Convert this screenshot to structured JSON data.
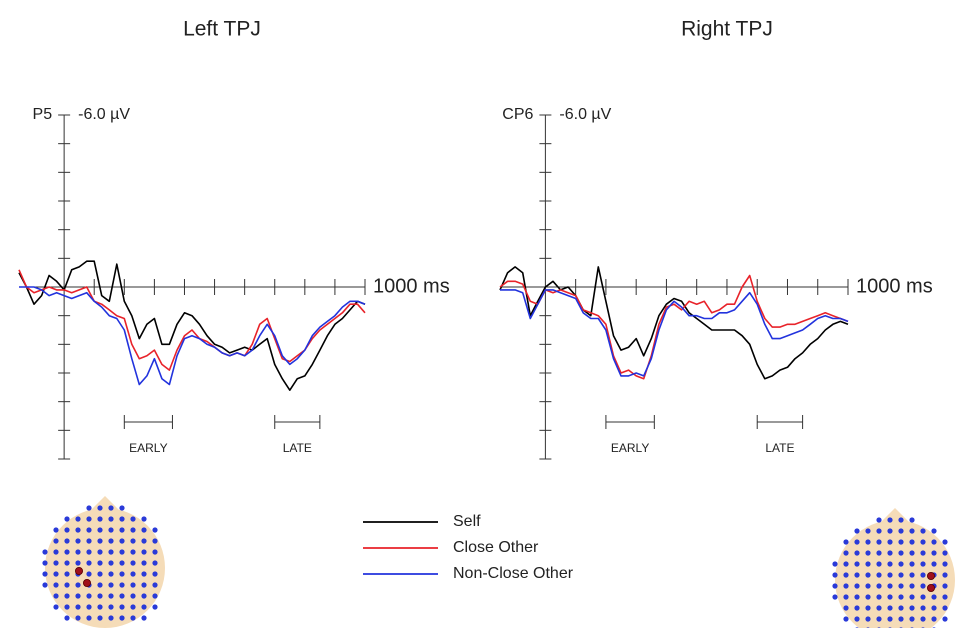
{
  "chart_data": [
    {
      "type": "line",
      "title": "Left TPJ",
      "channel": "P5",
      "x": [
        -150,
        -125,
        -100,
        -75,
        -50,
        -25,
        0,
        25,
        50,
        75,
        100,
        125,
        150,
        175,
        200,
        225,
        250,
        275,
        300,
        325,
        350,
        375,
        400,
        425,
        450,
        475,
        500,
        525,
        550,
        575,
        600,
        625,
        650,
        675,
        700,
        725,
        750,
        775,
        800,
        825,
        850,
        875,
        900,
        925,
        950,
        975,
        1000
      ],
      "xlim": [
        -150,
        1000
      ],
      "ylim": [
        -6,
        6
      ],
      "y_inverted": true,
      "xticks": [
        {
          "value": 1000,
          "label": "1000 ms"
        }
      ],
      "xminor_ticks": [
        100,
        200,
        300,
        400,
        500,
        600,
        700,
        800,
        900
      ],
      "yticks": [
        {
          "value": -6,
          "label": "-6.0 µV"
        }
      ],
      "yminor_ticks": [
        -5,
        -4,
        -3,
        -2,
        -1,
        0,
        1,
        2,
        3,
        4,
        5,
        6
      ],
      "windows": [
        {
          "label": "EARLY",
          "start": 200,
          "end": 360
        },
        {
          "label": "LATE",
          "start": 700,
          "end": 850
        }
      ],
      "legend": true,
      "series": [
        {
          "name": "Self",
          "color": "#000000",
          "values": [
            -0.5,
            0,
            0.6,
            0.3,
            -0.4,
            -0.2,
            0.1,
            -0.6,
            -0.7,
            -0.9,
            -0.9,
            0.3,
            0.5,
            -0.8,
            0.5,
            1.0,
            1.8,
            1.3,
            1.1,
            2.0,
            2.0,
            1.3,
            0.9,
            1.0,
            1.3,
            1.7,
            2.0,
            2.1,
            2.3,
            2.2,
            2.1,
            2.2,
            2.0,
            1.8,
            2.7,
            3.2,
            3.6,
            3.2,
            3.1,
            2.7,
            2.2,
            1.7,
            1.3,
            1.1,
            0.8,
            0.5,
            0.6
          ]
        },
        {
          "name": "Close Other",
          "color": "#e8232a",
          "values": [
            -0.6,
            0,
            0.2,
            0.1,
            0,
            0.1,
            0.1,
            0.2,
            0.1,
            0,
            0.5,
            0.6,
            0.8,
            1.0,
            1.1,
            2.0,
            2.5,
            2.4,
            2.2,
            2.7,
            2.9,
            2.2,
            1.7,
            1.5,
            1.8,
            1.9,
            2.1,
            2.3,
            2.4,
            2.3,
            2.4,
            2.0,
            1.3,
            1.1,
            1.8,
            2.5,
            2.6,
            2.4,
            2.2,
            1.8,
            1.5,
            1.3,
            1.1,
            0.9,
            0.6,
            0.6,
            0.9
          ]
        },
        {
          "name": "Non-Close Other",
          "color": "#2233dd",
          "values": [
            0,
            0,
            0,
            0.1,
            0.3,
            0.2,
            0.3,
            0.4,
            0.3,
            0.2,
            0.5,
            0.7,
            1.0,
            1.1,
            1.5,
            2.5,
            3.4,
            3.1,
            2.5,
            3.2,
            3.4,
            2.4,
            1.8,
            1.7,
            1.8,
            2.0,
            2.1,
            2.3,
            2.4,
            2.3,
            2.4,
            2.2,
            1.7,
            1.3,
            1.7,
            2.4,
            2.7,
            2.5,
            2.2,
            1.7,
            1.4,
            1.2,
            1.0,
            0.7,
            0.5,
            0.5,
            0.6
          ]
        }
      ]
    },
    {
      "type": "line",
      "title": "Right TPJ",
      "channel": "CP6",
      "x": [
        -150,
        -125,
        -100,
        -75,
        -50,
        -25,
        0,
        25,
        50,
        75,
        100,
        125,
        150,
        175,
        200,
        225,
        250,
        275,
        300,
        325,
        350,
        375,
        400,
        425,
        450,
        475,
        500,
        525,
        550,
        575,
        600,
        625,
        650,
        675,
        700,
        725,
        750,
        775,
        800,
        825,
        850,
        875,
        900,
        925,
        950,
        975,
        1000
      ],
      "xlim": [
        -150,
        1000
      ],
      "ylim": [
        -6,
        6
      ],
      "y_inverted": true,
      "xticks": [
        {
          "value": 1000,
          "label": "1000 ms"
        }
      ],
      "xminor_ticks": [
        100,
        200,
        300,
        400,
        500,
        600,
        700,
        800,
        900
      ],
      "yticks": [
        {
          "value": -6,
          "label": "-6.0 µV"
        }
      ],
      "yminor_ticks": [
        -5,
        -4,
        -3,
        -2,
        -1,
        0,
        1,
        2,
        3,
        4,
        5,
        6
      ],
      "windows": [
        {
          "label": "EARLY",
          "start": 200,
          "end": 360
        },
        {
          "label": "LATE",
          "start": 700,
          "end": 850
        }
      ],
      "series": [
        {
          "color": "#000000",
          "values": [
            0.1,
            -0.5,
            -0.7,
            -0.5,
            1.0,
            0.5,
            0,
            -0.2,
            0.1,
            0,
            0.3,
            0.8,
            1.0,
            -0.7,
            0.5,
            1.7,
            2.2,
            2.1,
            1.8,
            2.4,
            1.8,
            1.0,
            0.6,
            0.4,
            0.5,
            0.9,
            1.1,
            1.3,
            1.5,
            1.5,
            1.5,
            1.5,
            1.7,
            2.0,
            2.7,
            3.2,
            3.1,
            2.9,
            2.8,
            2.5,
            2.3,
            2.0,
            1.8,
            1.5,
            1.3,
            1.2,
            1.3
          ]
        },
        {
          "color": "#e8232a",
          "values": [
            0,
            -0.2,
            -0.2,
            -0.1,
            0.5,
            0.6,
            0.1,
            0.2,
            0.1,
            0.2,
            0.3,
            0.8,
            0.9,
            1.0,
            1.3,
            2.4,
            3.0,
            2.9,
            3.1,
            3.2,
            2.4,
            1.3,
            0.7,
            0.6,
            0.8,
            0.5,
            0.6,
            0.5,
            0.9,
            0.8,
            0.6,
            0.6,
            0,
            -0.4,
            0.5,
            1.1,
            1.4,
            1.4,
            1.3,
            1.3,
            1.2,
            1.1,
            1.0,
            0.9,
            1.0,
            1.1,
            1.2
          ]
        },
        {
          "color": "#2233dd",
          "values": [
            0.1,
            0.1,
            0.1,
            0.2,
            1.1,
            0.6,
            0.1,
            0.1,
            0.2,
            0.3,
            0.4,
            0.9,
            1.1,
            1.1,
            1.5,
            2.5,
            3.1,
            3.1,
            3.0,
            3.1,
            2.5,
            1.5,
            0.8,
            0.5,
            0.7,
            1.0,
            1.0,
            1.1,
            1.1,
            0.9,
            0.9,
            0.8,
            0.5,
            0.2,
            0.6,
            1.3,
            1.8,
            1.8,
            1.7,
            1.6,
            1.5,
            1.3,
            1.1,
            1.0,
            1.1,
            1.1,
            1.2
          ]
        }
      ]
    }
  ]
}
